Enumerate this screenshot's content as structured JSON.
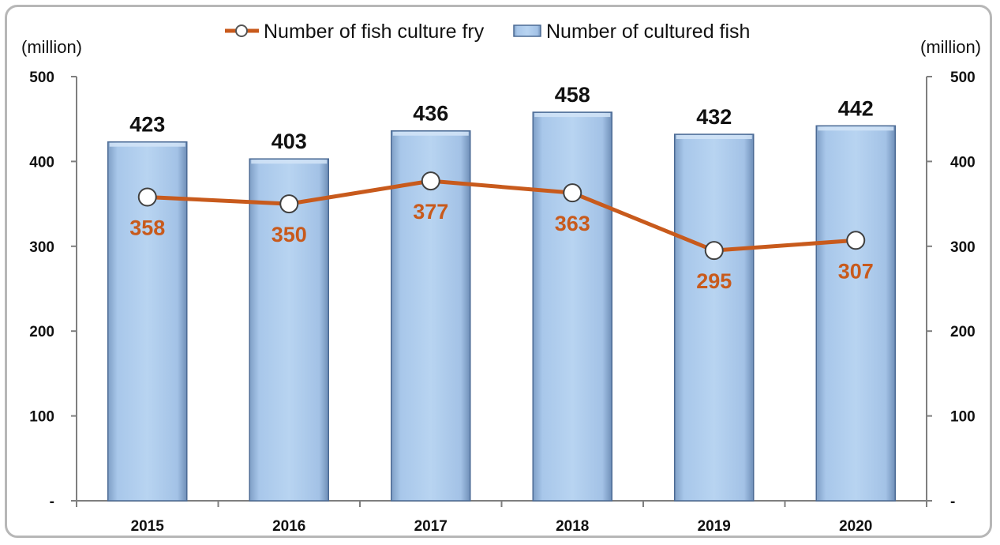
{
  "chart_data": {
    "type": "bar",
    "categories": [
      "2015",
      "2016",
      "2017",
      "2018",
      "2019",
      "2020"
    ],
    "series": [
      {
        "name": "Number of cultured fish",
        "type": "bar",
        "values": [
          423,
          403,
          436,
          458,
          432,
          442
        ],
        "labels": [
          "423",
          "403",
          "436",
          "458",
          "432",
          "442"
        ],
        "color": "#a9c9eb"
      },
      {
        "name": "Number of fish culture fry",
        "type": "line",
        "values": [
          358,
          350,
          377,
          363,
          295,
          307
        ],
        "labels": [
          "358",
          "350",
          "377",
          "363",
          "295",
          "307"
        ],
        "color": "#c85a1c"
      }
    ],
    "ylim": [
      0,
      500
    ],
    "yticks": [
      "-",
      "100",
      "200",
      "300",
      "400",
      "500"
    ],
    "ytick_values": [
      0,
      100,
      200,
      300,
      400,
      500
    ],
    "y_unit_left": "(million)",
    "y_unit_right": "(million)",
    "grid": false,
    "legend_position": "top-center"
  }
}
